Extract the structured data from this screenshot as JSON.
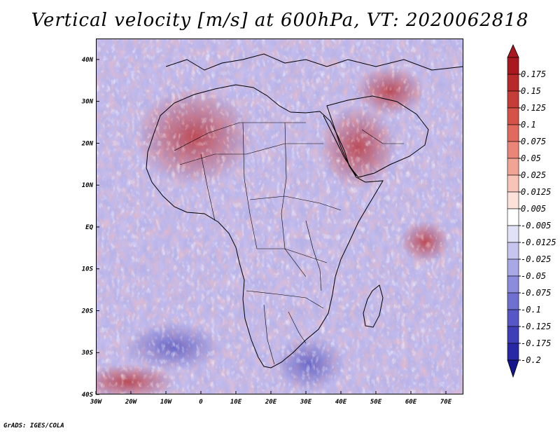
{
  "title": "Vertical velocity [m/s] at 600hPa, VT: 2020062818",
  "credit": "GrADS: IGES/COLA",
  "map": {
    "region": "Africa",
    "lon_range": [
      -30,
      75
    ],
    "lat_range": [
      -40,
      45
    ],
    "lon_ticks": [
      {
        "value": -30,
        "label": "30W"
      },
      {
        "value": -20,
        "label": "20W"
      },
      {
        "value": -10,
        "label": "10W"
      },
      {
        "value": 0,
        "label": "0"
      },
      {
        "value": 10,
        "label": "10E"
      },
      {
        "value": 20,
        "label": "20E"
      },
      {
        "value": 30,
        "label": "30E"
      },
      {
        "value": 40,
        "label": "40E"
      },
      {
        "value": 50,
        "label": "50E"
      },
      {
        "value": 60,
        "label": "60E"
      },
      {
        "value": 70,
        "label": "70E"
      }
    ],
    "lat_ticks": [
      {
        "value": 40,
        "label": "40N"
      },
      {
        "value": 30,
        "label": "30N"
      },
      {
        "value": 20,
        "label": "20N"
      },
      {
        "value": 10,
        "label": "10N"
      },
      {
        "value": 0,
        "label": "EQ"
      },
      {
        "value": -10,
        "label": "10S"
      },
      {
        "value": -20,
        "label": "20S"
      },
      {
        "value": -30,
        "label": "30S"
      },
      {
        "value": -40,
        "label": "40S"
      }
    ]
  },
  "colorbar": {
    "labels": [
      "0.175",
      "0.15",
      "0.125",
      "0.1",
      "0.075",
      "0.05",
      "0.025",
      "0.0125",
      "0.005",
      "-0.005",
      "-0.0125",
      "-0.025",
      "-0.05",
      "-0.075",
      "-0.1",
      "-0.125",
      "-0.175",
      "-0.2"
    ],
    "colors": [
      "#a8181e",
      "#b82a2a",
      "#c63c38",
      "#d55248",
      "#e06a5e",
      "#ea8578",
      "#f1a394",
      "#f7c4b7",
      "#fbe1d9",
      "#ffffff",
      "#e1e1f7",
      "#c5c5ef",
      "#a8a8e6",
      "#8c8cdc",
      "#7070d2",
      "#5656c6",
      "#3e3eb8",
      "#2828a6",
      "#14148e"
    ]
  }
}
